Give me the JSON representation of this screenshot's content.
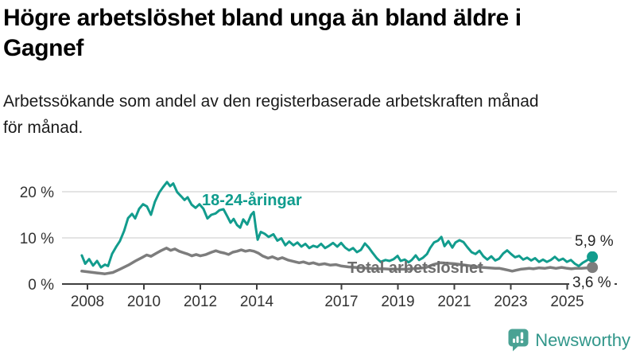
{
  "branding": {
    "name": "Newsworthy",
    "brand_color": "#4aa294"
  },
  "chart_data": {
    "type": "line",
    "title": "Högre arbetslöshet bland unga än bland äldre i\nGagnef",
    "subtitle": "Arbetssökande som andel av den registerbaserade arbetskraften månad\nför månad.",
    "xlabel": "",
    "ylabel": "",
    "unit": "%",
    "grid": "horizontal",
    "legend_position": "inline-labels",
    "xlim": [
      2007.7,
      2026.6
    ],
    "ylim": [
      0,
      24
    ],
    "x_ticks": [
      "2008",
      "2010",
      "2012",
      "2014",
      "2017",
      "2019",
      "2021",
      "2023",
      "2025"
    ],
    "x_tick_values": [
      2008,
      2010,
      2012,
      2014,
      2017,
      2019,
      2021,
      2023,
      2025
    ],
    "y_ticks": [
      {
        "value": 0,
        "label": "0 %"
      },
      {
        "value": 10,
        "label": "10 %"
      },
      {
        "value": 20,
        "label": "20 %"
      }
    ],
    "series": [
      {
        "name": "18-24-åringar",
        "color": "#129c8d",
        "end_value_label": "5,9 %",
        "last_value": 5.9,
        "points": [
          [
            2007.8,
            6.2
          ],
          [
            2007.92,
            4.4
          ],
          [
            2008.06,
            5.4
          ],
          [
            2008.2,
            4.0
          ],
          [
            2008.34,
            5.0
          ],
          [
            2008.48,
            3.6
          ],
          [
            2008.62,
            4.2
          ],
          [
            2008.73,
            3.9
          ],
          [
            2008.87,
            6.5
          ],
          [
            2009.01,
            8.0
          ],
          [
            2009.15,
            9.3
          ],
          [
            2009.3,
            11.5
          ],
          [
            2009.44,
            14.3
          ],
          [
            2009.58,
            15.2
          ],
          [
            2009.69,
            14.2
          ],
          [
            2009.83,
            16.3
          ],
          [
            2009.97,
            17.3
          ],
          [
            2010.11,
            16.8
          ],
          [
            2010.25,
            15.0
          ],
          [
            2010.39,
            17.8
          ],
          [
            2010.54,
            19.8
          ],
          [
            2010.68,
            21.0
          ],
          [
            2010.82,
            22.1
          ],
          [
            2010.93,
            21.2
          ],
          [
            2011.04,
            21.8
          ],
          [
            2011.18,
            19.9
          ],
          [
            2011.32,
            19.0
          ],
          [
            2011.44,
            18.2
          ],
          [
            2011.55,
            18.8
          ],
          [
            2011.69,
            17.2
          ],
          [
            2011.83,
            16.5
          ],
          [
            2011.97,
            17.3
          ],
          [
            2012.11,
            16.3
          ],
          [
            2012.25,
            14.2
          ],
          [
            2012.39,
            15.0
          ],
          [
            2012.54,
            15.3
          ],
          [
            2012.68,
            16.0
          ],
          [
            2012.82,
            16.2
          ],
          [
            2012.96,
            14.6
          ],
          [
            2013.07,
            13.3
          ],
          [
            2013.18,
            14.1
          ],
          [
            2013.3,
            12.8
          ],
          [
            2013.41,
            12.2
          ],
          [
            2013.52,
            14.0
          ],
          [
            2013.66,
            12.9
          ],
          [
            2013.8,
            15.0
          ],
          [
            2013.89,
            15.6
          ],
          [
            2013.97,
            12.0
          ],
          [
            2014.03,
            9.6
          ],
          [
            2014.14,
            11.3
          ],
          [
            2014.28,
            10.9
          ],
          [
            2014.42,
            10.2
          ],
          [
            2014.59,
            10.8
          ],
          [
            2014.73,
            9.4
          ],
          [
            2014.87,
            9.9
          ],
          [
            2015.01,
            8.4
          ],
          [
            2015.15,
            9.2
          ],
          [
            2015.3,
            8.4
          ],
          [
            2015.44,
            9.0
          ],
          [
            2015.58,
            8.1
          ],
          [
            2015.72,
            8.7
          ],
          [
            2015.86,
            7.8
          ],
          [
            2016.0,
            8.3
          ],
          [
            2016.14,
            8.0
          ],
          [
            2016.28,
            8.7
          ],
          [
            2016.42,
            7.8
          ],
          [
            2016.56,
            8.3
          ],
          [
            2016.7,
            8.9
          ],
          [
            2016.85,
            8.1
          ],
          [
            2016.99,
            8.9
          ],
          [
            2017.13,
            7.9
          ],
          [
            2017.27,
            7.3
          ],
          [
            2017.41,
            7.8
          ],
          [
            2017.55,
            6.9
          ],
          [
            2017.69,
            7.4
          ],
          [
            2017.83,
            8.8
          ],
          [
            2017.97,
            7.9
          ],
          [
            2018.11,
            6.7
          ],
          [
            2018.25,
            5.6
          ],
          [
            2018.39,
            4.8
          ],
          [
            2018.56,
            5.2
          ],
          [
            2018.7,
            5.0
          ],
          [
            2018.85,
            5.4
          ],
          [
            2018.99,
            6.1
          ],
          [
            2019.1,
            5.0
          ],
          [
            2019.24,
            5.3
          ],
          [
            2019.38,
            4.7
          ],
          [
            2019.49,
            5.2
          ],
          [
            2019.63,
            6.2
          ],
          [
            2019.75,
            5.2
          ],
          [
            2019.89,
            5.7
          ],
          [
            2020.03,
            6.5
          ],
          [
            2020.14,
            7.8
          ],
          [
            2020.28,
            9.0
          ],
          [
            2020.42,
            9.4
          ],
          [
            2020.54,
            10.2
          ],
          [
            2020.65,
            8.2
          ],
          [
            2020.79,
            9.3
          ],
          [
            2020.93,
            7.9
          ],
          [
            2021.04,
            9.0
          ],
          [
            2021.18,
            9.5
          ],
          [
            2021.32,
            9.1
          ],
          [
            2021.46,
            8.0
          ],
          [
            2021.61,
            6.9
          ],
          [
            2021.75,
            6.5
          ],
          [
            2021.89,
            7.2
          ],
          [
            2022.03,
            6.0
          ],
          [
            2022.17,
            5.3
          ],
          [
            2022.31,
            6.0
          ],
          [
            2022.45,
            5.1
          ],
          [
            2022.59,
            5.5
          ],
          [
            2022.73,
            6.6
          ],
          [
            2022.87,
            7.3
          ],
          [
            2023.01,
            6.5
          ],
          [
            2023.15,
            5.8
          ],
          [
            2023.3,
            6.1
          ],
          [
            2023.44,
            5.3
          ],
          [
            2023.58,
            5.7
          ],
          [
            2023.72,
            5.1
          ],
          [
            2023.86,
            5.6
          ],
          [
            2024.0,
            4.8
          ],
          [
            2024.14,
            5.3
          ],
          [
            2024.28,
            4.8
          ],
          [
            2024.42,
            5.2
          ],
          [
            2024.56,
            5.9
          ],
          [
            2024.7,
            5.1
          ],
          [
            2024.85,
            5.5
          ],
          [
            2024.99,
            4.8
          ],
          [
            2025.13,
            5.2
          ],
          [
            2025.27,
            4.4
          ],
          [
            2025.41,
            3.9
          ],
          [
            2025.55,
            4.6
          ],
          [
            2025.69,
            5.1
          ],
          [
            2025.89,
            5.9
          ]
        ]
      },
      {
        "name": "Total arbetslöshet",
        "color": "#7d7d7d",
        "end_value_label": "3,6 %",
        "last_value": 3.6,
        "points": [
          [
            2007.8,
            2.8
          ],
          [
            2008.06,
            2.6
          ],
          [
            2008.34,
            2.4
          ],
          [
            2008.62,
            2.2
          ],
          [
            2008.9,
            2.5
          ],
          [
            2009.15,
            3.2
          ],
          [
            2009.45,
            4.1
          ],
          [
            2009.7,
            5.0
          ],
          [
            2009.95,
            5.8
          ],
          [
            2010.1,
            6.3
          ],
          [
            2010.25,
            6.0
          ],
          [
            2010.45,
            6.7
          ],
          [
            2010.6,
            7.2
          ],
          [
            2010.8,
            7.8
          ],
          [
            2010.95,
            7.3
          ],
          [
            2011.1,
            7.6
          ],
          [
            2011.25,
            7.1
          ],
          [
            2011.4,
            6.8
          ],
          [
            2011.55,
            6.5
          ],
          [
            2011.7,
            6.1
          ],
          [
            2011.85,
            6.4
          ],
          [
            2012.0,
            6.1
          ],
          [
            2012.2,
            6.4
          ],
          [
            2012.4,
            6.9
          ],
          [
            2012.55,
            7.2
          ],
          [
            2012.7,
            6.9
          ],
          [
            2012.85,
            6.7
          ],
          [
            2013.0,
            6.4
          ],
          [
            2013.15,
            6.9
          ],
          [
            2013.3,
            7.1
          ],
          [
            2013.45,
            7.4
          ],
          [
            2013.6,
            7.1
          ],
          [
            2013.75,
            7.3
          ],
          [
            2013.9,
            7.1
          ],
          [
            2014.05,
            6.7
          ],
          [
            2014.2,
            6.1
          ],
          [
            2014.4,
            5.6
          ],
          [
            2014.55,
            5.9
          ],
          [
            2014.75,
            5.4
          ],
          [
            2014.9,
            5.7
          ],
          [
            2015.1,
            5.2
          ],
          [
            2015.3,
            4.9
          ],
          [
            2015.5,
            4.6
          ],
          [
            2015.65,
            4.8
          ],
          [
            2015.85,
            4.4
          ],
          [
            2016.0,
            4.6
          ],
          [
            2016.2,
            4.2
          ],
          [
            2016.4,
            4.4
          ],
          [
            2016.6,
            4.1
          ],
          [
            2016.8,
            4.2
          ],
          [
            2017.0,
            3.9
          ],
          [
            2017.25,
            3.7
          ],
          [
            2017.5,
            3.6
          ],
          [
            2017.75,
            3.5
          ],
          [
            2018.0,
            3.4
          ],
          [
            2018.25,
            3.3
          ],
          [
            2018.5,
            3.3
          ],
          [
            2018.75,
            3.2
          ],
          [
            2019.0,
            3.2
          ],
          [
            2019.25,
            3.2
          ],
          [
            2019.5,
            3.3
          ],
          [
            2019.75,
            3.4
          ],
          [
            2020.0,
            3.6
          ],
          [
            2020.25,
            4.2
          ],
          [
            2020.5,
            4.6
          ],
          [
            2020.75,
            4.5
          ],
          [
            2021.0,
            4.4
          ],
          [
            2021.25,
            4.2
          ],
          [
            2021.5,
            4.0
          ],
          [
            2021.75,
            3.8
          ],
          [
            2022.0,
            3.6
          ],
          [
            2022.25,
            3.5
          ],
          [
            2022.45,
            3.4
          ],
          [
            2022.6,
            3.4
          ],
          [
            2022.75,
            3.2
          ],
          [
            2022.9,
            3.0
          ],
          [
            2023.05,
            2.8
          ],
          [
            2023.2,
            3.0
          ],
          [
            2023.35,
            3.2
          ],
          [
            2023.5,
            3.3
          ],
          [
            2023.65,
            3.4
          ],
          [
            2023.8,
            3.3
          ],
          [
            2024.0,
            3.5
          ],
          [
            2024.2,
            3.4
          ],
          [
            2024.4,
            3.6
          ],
          [
            2024.6,
            3.4
          ],
          [
            2024.8,
            3.6
          ],
          [
            2025.0,
            3.4
          ],
          [
            2025.15,
            3.3
          ],
          [
            2025.3,
            3.4
          ],
          [
            2025.5,
            3.4
          ],
          [
            2025.7,
            3.5
          ],
          [
            2025.89,
            3.6
          ]
        ]
      }
    ]
  }
}
